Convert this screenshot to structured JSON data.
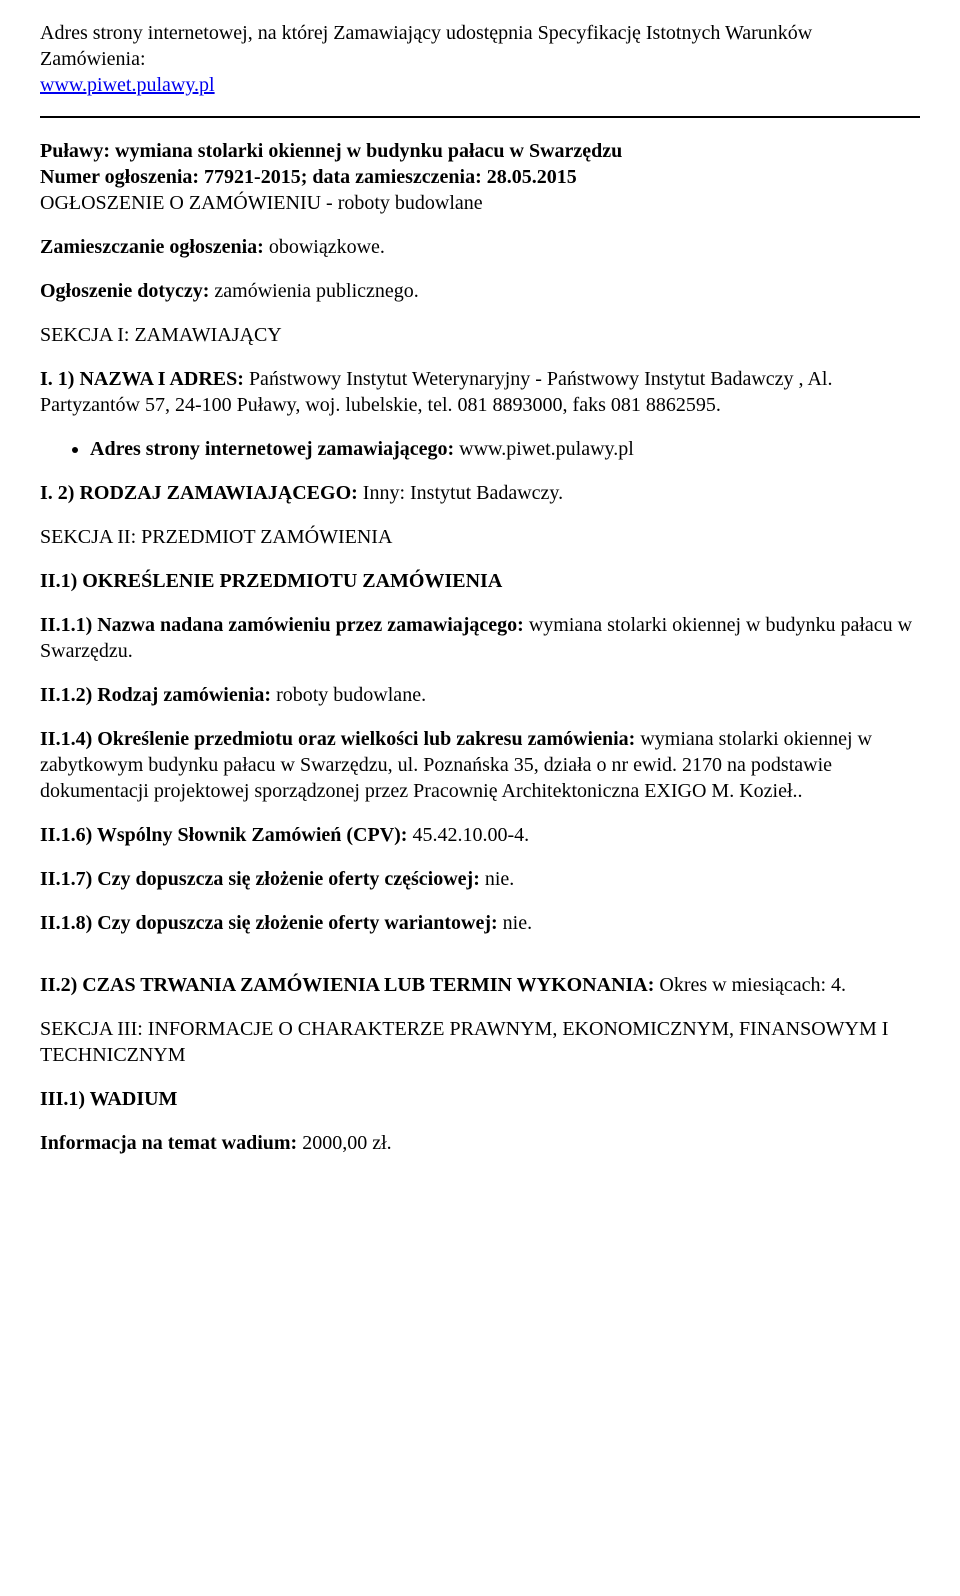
{
  "header": {
    "intro": "Adres strony internetowej, na której Zamawiający udostępnia Specyfikację Istotnych Warunków Zamówienia:",
    "url": "www.piwet.pulawy.pl"
  },
  "title_block": {
    "line1_bold": "Puławy: wymiana stolarki okiennej w budynku pałacu w Swarzędzu",
    "line2_bold": "Numer ogłoszenia: 77921-2015; data zamieszczenia: 28.05.2015",
    "line3": "OGŁOSZENIE O ZAMÓWIENIU - roboty budowlane"
  },
  "posting": {
    "label": "Zamieszczanie ogłoszenia:",
    "value": " obowiązkowe."
  },
  "concerns": {
    "label": "Ogłoszenie dotyczy:",
    "value": " zamówienia publicznego."
  },
  "section1": {
    "heading": "SEKCJA I: ZAMAWIAJĄCY",
    "i1_label": "I. 1) NAZWA I ADRES:",
    "i1_value": " Państwowy Instytut Weterynaryjny - Państwowy Instytut Badawczy , Al. Partyzantów 57, 24-100 Puławy, woj. lubelskie, tel. 081 8893000, faks 081 8862595.",
    "bullet_label": "Adres strony internetowej zamawiającego:",
    "bullet_value": " www.piwet.pulawy.pl",
    "i2_label": "I. 2) RODZAJ ZAMAWIAJĄCEGO:",
    "i2_value": " Inny: Instytut Badawczy."
  },
  "section2": {
    "heading": "SEKCJA II: PRZEDMIOT ZAMÓWIENIA",
    "ii1_heading": "II.1) OKREŚLENIE PRZEDMIOTU ZAMÓWIENIA",
    "ii1_1_label": "II.1.1) Nazwa nadana zamówieniu przez zamawiającego:",
    "ii1_1_value": " wymiana stolarki okiennej w budynku pałacu w Swarzędzu.",
    "ii1_2_label": "II.1.2) Rodzaj zamówienia:",
    "ii1_2_value": " roboty budowlane.",
    "ii1_4_label": "II.1.4) Określenie przedmiotu oraz wielkości lub zakresu zamówienia:",
    "ii1_4_value": " wymiana stolarki okiennej w zabytkowym budynku pałacu w Swarzędzu, ul. Poznańska 35, działa o nr ewid. 2170 na podstawie dokumentacji projektowej sporządzonej przez Pracownię Architektoniczna EXIGO M. Kozieł..",
    "ii1_6_label": "II.1.6) Wspólny Słownik Zamówień (CPV):",
    "ii1_6_value": " 45.42.10.00-4.",
    "ii1_7_label": "II.1.7) Czy dopuszcza się złożenie oferty częściowej:",
    "ii1_7_value": " nie.",
    "ii1_8_label": "II.1.8) Czy dopuszcza się złożenie oferty wariantowej:",
    "ii1_8_value": " nie.",
    "ii2_label": "II.2) CZAS TRWANIA ZAMÓWIENIA LUB TERMIN WYKONANIA:",
    "ii2_value": " Okres w miesiącach: 4."
  },
  "section3": {
    "heading": "SEKCJA III: INFORMACJE O CHARAKTERZE PRAWNYM, EKONOMICZNYM, FINANSOWYM I TECHNICZNYM",
    "iii1_heading": "III.1) WADIUM",
    "wadium_label": "Informacja na temat wadium:",
    "wadium_value": " 2000,00 zł."
  }
}
